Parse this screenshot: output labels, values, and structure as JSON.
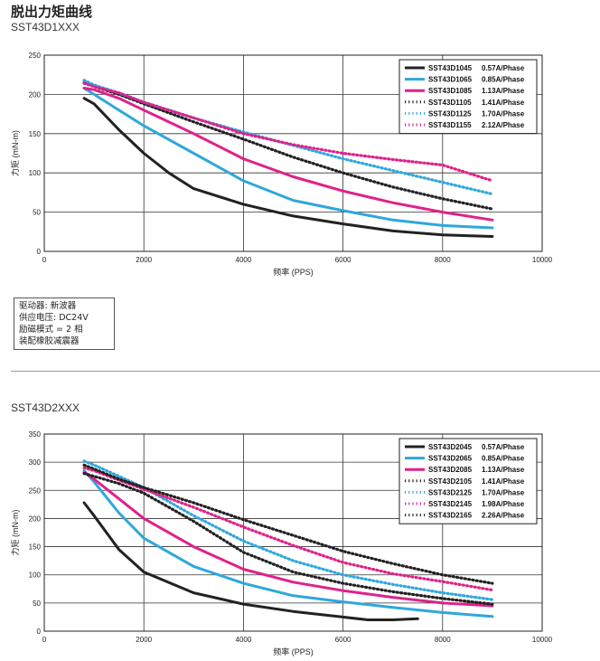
{
  "page": {
    "title": "脱出力矩曲线",
    "section1_title": "SST43D1XXX",
    "section2_title": "SST43D2XXX",
    "notes": [
      "驱动器: 新波器",
      "供应电压: DC24V",
      "励磁模式 = 2 相",
      "装配橡胶减震器"
    ]
  },
  "chart_data": [
    {
      "type": "line",
      "title": "SST43D1XXX",
      "xlabel": "频率 (PPS)",
      "ylabel": "力矩 (mN-m)",
      "xlim": [
        0,
        10000
      ],
      "ylim": [
        0,
        250
      ],
      "xticks": [
        0,
        2000,
        4000,
        6000,
        8000,
        10000
      ],
      "yticks": [
        0,
        50,
        100,
        150,
        200,
        250
      ],
      "grid": true,
      "legend_position": "top-right",
      "series": [
        {
          "name": "SST43D1045",
          "current": "0.57A/Phase",
          "color": "#222222",
          "dash": "solid",
          "x": [
            800,
            1000,
            1500,
            2000,
            2500,
            3000,
            4000,
            5000,
            6000,
            7000,
            8000,
            9000
          ],
          "y": [
            195,
            188,
            155,
            125,
            100,
            80,
            60,
            45,
            35,
            26,
            21,
            19
          ]
        },
        {
          "name": "SST43D1065",
          "current": "0.85A/Phase",
          "color": "#2fa7dc",
          "dash": "solid",
          "x": [
            800,
            1000,
            1500,
            2000,
            3000,
            4000,
            5000,
            6000,
            7000,
            8000,
            9000
          ],
          "y": [
            208,
            200,
            180,
            160,
            125,
            90,
            65,
            52,
            40,
            33,
            30
          ]
        },
        {
          "name": "SST43D1085",
          "current": "1.13A/Phase",
          "color": "#e0218a",
          "dash": "solid",
          "x": [
            800,
            1000,
            1500,
            2000,
            3000,
            4000,
            5000,
            6000,
            7000,
            8000,
            9000
          ],
          "y": [
            208,
            206,
            195,
            180,
            150,
            118,
            95,
            77,
            62,
            50,
            40
          ]
        },
        {
          "name": "SST43D1105",
          "current": "1.41A/Phase",
          "color": "#222222",
          "dash": "dotted",
          "x": [
            800,
            1000,
            1500,
            2000,
            3000,
            4000,
            5000,
            6000,
            7000,
            8000,
            9000
          ],
          "y": [
            215,
            210,
            200,
            188,
            165,
            143,
            120,
            100,
            82,
            67,
            54
          ]
        },
        {
          "name": "SST43D1125",
          "current": "1.70A/Phase",
          "color": "#2fa7dc",
          "dash": "dotted",
          "x": [
            800,
            1000,
            1500,
            2000,
            3000,
            4000,
            5000,
            6000,
            7000,
            8000,
            9000
          ],
          "y": [
            218,
            212,
            202,
            190,
            170,
            152,
            135,
            118,
            103,
            88,
            73
          ]
        },
        {
          "name": "SST43D1155",
          "current": "2.12A/Phase",
          "color": "#e0218a",
          "dash": "dotted",
          "x": [
            800,
            1000,
            1500,
            2000,
            3000,
            4000,
            5000,
            6000,
            7000,
            8000,
            9000
          ],
          "y": [
            214,
            210,
            202,
            190,
            170,
            150,
            136,
            125,
            117,
            110,
            90
          ]
        }
      ]
    },
    {
      "type": "line",
      "title": "SST43D2XXX",
      "xlabel": "频率 (PPS)",
      "ylabel": "力矩 (mN-m)",
      "xlim": [
        0,
        10000
      ],
      "ylim": [
        0,
        350
      ],
      "xticks": [
        0,
        2000,
        4000,
        6000,
        8000,
        10000
      ],
      "yticks": [
        0,
        50,
        100,
        150,
        200,
        250,
        300,
        350
      ],
      "grid": true,
      "legend_position": "top-right",
      "series": [
        {
          "name": "SST43D2045",
          "current": "0.57A/Phase",
          "color": "#222222",
          "dash": "solid",
          "x": [
            800,
            1000,
            1500,
            2000,
            3000,
            4000,
            5000,
            6000,
            6500,
            7000,
            7500
          ],
          "y": [
            228,
            205,
            145,
            105,
            68,
            48,
            35,
            25,
            20,
            20,
            22
          ]
        },
        {
          "name": "SST43D2065",
          "current": "0.85A/Phase",
          "color": "#2fa7dc",
          "dash": "solid",
          "x": [
            800,
            1000,
            1500,
            2000,
            3000,
            4000,
            5000,
            6000,
            7000,
            8000,
            9000
          ],
          "y": [
            285,
            265,
            210,
            165,
            115,
            85,
            63,
            52,
            42,
            33,
            26
          ]
        },
        {
          "name": "SST43D2085",
          "current": "1.13A/Phase",
          "color": "#e0218a",
          "dash": "solid",
          "x": [
            800,
            1000,
            1500,
            2000,
            3000,
            4000,
            5000,
            6000,
            7000,
            8000,
            9000
          ],
          "y": [
            282,
            270,
            235,
            200,
            150,
            110,
            87,
            72,
            60,
            50,
            45
          ]
        },
        {
          "name": "SST43D2105",
          "current": "1.41A/Phase",
          "color": "#222222",
          "dash": "dotted",
          "x": [
            800,
            1000,
            1500,
            2000,
            3000,
            4000,
            5000,
            6000,
            7000,
            8000,
            9000
          ],
          "y": [
            280,
            275,
            262,
            245,
            195,
            140,
            105,
            85,
            70,
            58,
            48
          ]
        },
        {
          "name": "SST43D2125",
          "current": "1.70A/Phase",
          "color": "#2fa7dc",
          "dash": "dotted",
          "x": [
            800,
            1000,
            1500,
            2000,
            3000,
            4000,
            5000,
            6000,
            7000,
            8000,
            9000
          ],
          "y": [
            302,
            295,
            275,
            255,
            205,
            160,
            125,
            100,
            83,
            68,
            56
          ]
        },
        {
          "name": "SST43D2145",
          "current": "1.98A/Phase",
          "color": "#e0218a",
          "dash": "dotted",
          "x": [
            800,
            1000,
            1500,
            2000,
            3000,
            4000,
            5000,
            6000,
            7000,
            8000,
            9000
          ],
          "y": [
            290,
            285,
            268,
            252,
            220,
            185,
            152,
            122,
            102,
            88,
            73
          ]
        },
        {
          "name": "SST43D2165",
          "current": "2.26A/Phase",
          "color": "#222222",
          "dash": "dotted",
          "x": [
            800,
            1000,
            1500,
            2000,
            3000,
            4000,
            5000,
            6000,
            7000,
            8000,
            9000
          ],
          "y": [
            295,
            288,
            270,
            255,
            228,
            198,
            170,
            142,
            120,
            100,
            85
          ]
        }
      ]
    }
  ]
}
